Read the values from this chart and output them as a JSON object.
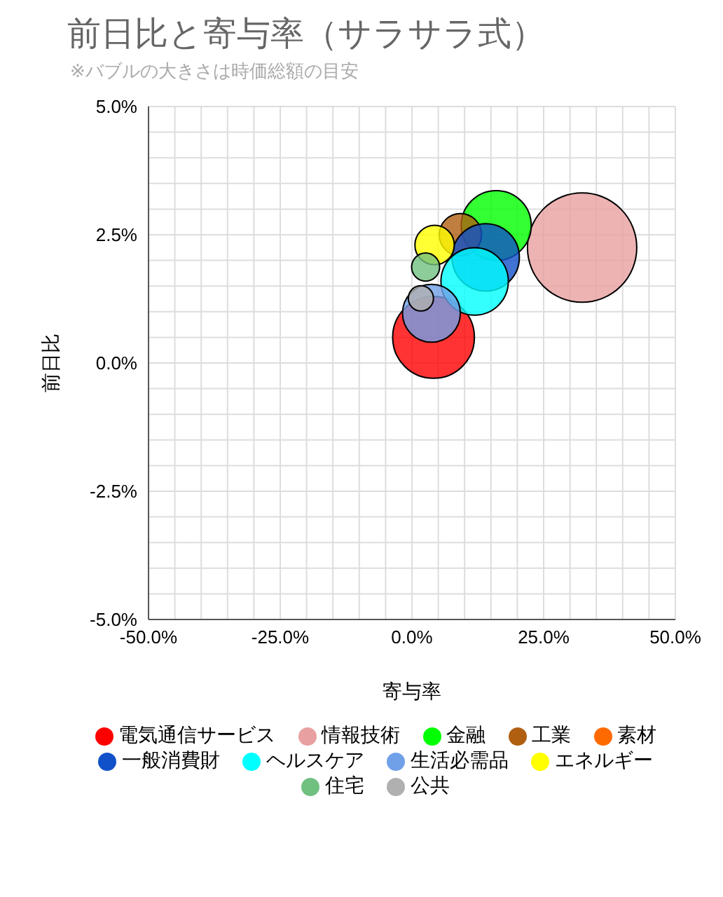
{
  "chart_data": {
    "type": "bubble",
    "title": "前日比と寄与率（サラサラ式）",
    "subtitle": "※バブルの大きさは時価総額の目安",
    "xlabel": "寄与率",
    "ylabel": "前日比",
    "xlim": [
      -50,
      50
    ],
    "ylim": [
      -5,
      5
    ],
    "xticks": [
      {
        "value": -50,
        "label": "-50.0%"
      },
      {
        "value": -45,
        "label": null
      },
      {
        "value": -40,
        "label": null
      },
      {
        "value": -35,
        "label": null
      },
      {
        "value": -30,
        "label": null
      },
      {
        "value": -25,
        "label": "-25.0%"
      },
      {
        "value": -20,
        "label": null
      },
      {
        "value": -15,
        "label": null
      },
      {
        "value": -10,
        "label": null
      },
      {
        "value": -5,
        "label": null
      },
      {
        "value": 0,
        "label": "0.0%"
      },
      {
        "value": 5,
        "label": null
      },
      {
        "value": 10,
        "label": null
      },
      {
        "value": 15,
        "label": null
      },
      {
        "value": 20,
        "label": null
      },
      {
        "value": 25,
        "label": "25.0%"
      },
      {
        "value": 30,
        "label": null
      },
      {
        "value": 35,
        "label": null
      },
      {
        "value": 40,
        "label": null
      },
      {
        "value": 45,
        "label": null
      },
      {
        "value": 50,
        "label": "50.0%"
      }
    ],
    "yticks": [
      {
        "value": -5,
        "label": "-5.0%"
      },
      {
        "value": -4.5,
        "label": null
      },
      {
        "value": -4,
        "label": null
      },
      {
        "value": -3.5,
        "label": null
      },
      {
        "value": -3,
        "label": null
      },
      {
        "value": -2.5,
        "label": "-2.5%"
      },
      {
        "value": -2,
        "label": null
      },
      {
        "value": -1.5,
        "label": null
      },
      {
        "value": -1,
        "label": null
      },
      {
        "value": -0.5,
        "label": null
      },
      {
        "value": 0,
        "label": "0.0%"
      },
      {
        "value": 0.5,
        "label": null
      },
      {
        "value": 1,
        "label": null
      },
      {
        "value": 1.5,
        "label": null
      },
      {
        "value": 2,
        "label": null
      },
      {
        "value": 2.5,
        "label": "2.5%"
      },
      {
        "value": 3,
        "label": null
      },
      {
        "value": 3.5,
        "label": null
      },
      {
        "value": 4,
        "label": null
      },
      {
        "value": 4.5,
        "label": null
      },
      {
        "value": 5,
        "label": "5.0%"
      }
    ],
    "grid": true,
    "legend": "bottom",
    "series": [
      {
        "name": "電気通信サービス",
        "color": "#ff0000",
        "x": [
          4.1
        ],
        "values": [
          0.5
        ],
        "sizes": [
          0.56
        ]
      },
      {
        "name": "情報技術",
        "color": "#e8a0a0",
        "x": [
          32.3
        ],
        "values": [
          2.25
        ],
        "sizes": [
          1
        ]
      },
      {
        "name": "金融",
        "color": "#00ff00",
        "x": [
          16.0
        ],
        "values": [
          2.68
        ],
        "sizes": [
          0.41
        ]
      },
      {
        "name": "工業",
        "color": "#b05f10",
        "x": [
          9.2
        ],
        "values": [
          2.5
        ],
        "sizes": [
          0.15
        ]
      },
      {
        "name": "素材",
        "color": "#ff6a00",
        "x": [
          null
        ],
        "values": [
          null
        ],
        "sizes": [
          null
        ]
      },
      {
        "name": "一般消費財",
        "color": "#1050c8",
        "x": [
          14.0
        ],
        "values": [
          2.06
        ],
        "sizes": [
          0.38
        ]
      },
      {
        "name": "ヘルスケア",
        "color": "#00ffff",
        "x": [
          11.9
        ],
        "values": [
          1.59
        ],
        "sizes": [
          0.38
        ]
      },
      {
        "name": "生活必需品",
        "color": "#70a0e8",
        "x": [
          3.7
        ],
        "values": [
          0.97
        ],
        "sizes": [
          0.28
        ]
      },
      {
        "name": "エネルギー",
        "color": "#ffff00",
        "x": [
          4.3
        ],
        "values": [
          2.3
        ],
        "sizes": [
          0.13
        ]
      },
      {
        "name": "住宅",
        "color": "#70c080",
        "x": [
          2.6
        ],
        "values": [
          1.87
        ],
        "sizes": [
          0.066
        ]
      },
      {
        "name": "公共",
        "color": "#b0b0b0",
        "x": [
          1.7
        ],
        "values": [
          1.26
        ],
        "sizes": [
          0.053
        ]
      }
    ]
  }
}
